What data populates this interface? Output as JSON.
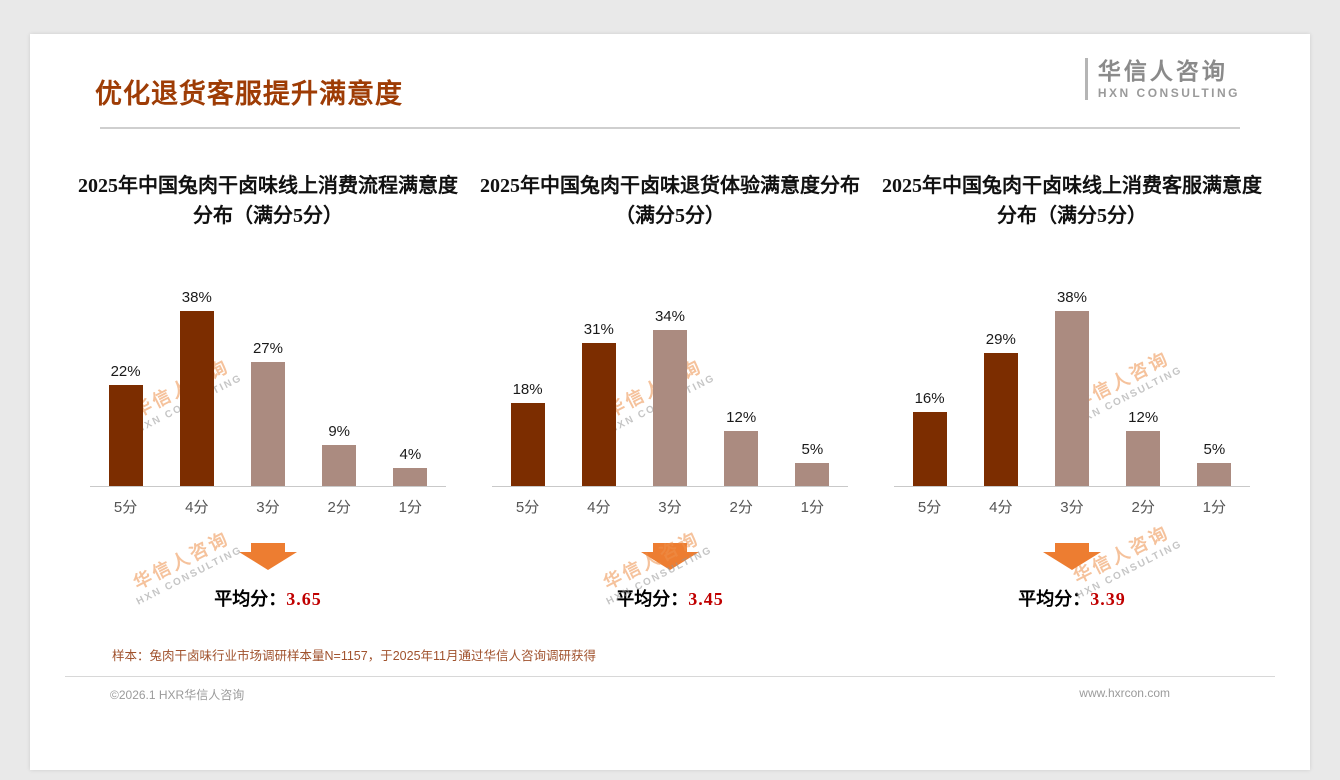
{
  "page": {
    "title": "优化退货客服提升满意度",
    "logo": {
      "name": "华信人咨询",
      "sub": "HXN CONSULTING"
    },
    "watermark": {
      "line1": "华信人咨询",
      "line2": "HXN CONSULTING"
    },
    "footnote": "样本：兔肉干卤味行业市场调研样本量N=1157，于2025年11月通过华信人咨询调研获得",
    "footer_left": "©2026.1 HXR华信人咨询",
    "footer_right": "www.hxrcon.com"
  },
  "colors": {
    "title": "#9e3c05",
    "bar_dark": "#7c2d00",
    "bar_light": "#ab8b80",
    "arrow": "#ed7d31",
    "average_value": "#c00000"
  },
  "chart_data": [
    {
      "type": "bar",
      "title": "2025年中国兔肉干卤味线上消费流程满意度分布（满分5分）",
      "categories": [
        "5分",
        "4分",
        "3分",
        "2分",
        "1分"
      ],
      "values": [
        22,
        38,
        27,
        9,
        4
      ],
      "unit": "%",
      "xlabel": "",
      "ylabel": "",
      "ylim": [
        0,
        40
      ],
      "grid": false,
      "average_label": "平均分：",
      "average": "3.65"
    },
    {
      "type": "bar",
      "title": "2025年中国兔肉干卤味退货体验满意度分布（满分5分）",
      "categories": [
        "5分",
        "4分",
        "3分",
        "2分",
        "1分"
      ],
      "values": [
        18,
        31,
        34,
        12,
        5
      ],
      "unit": "%",
      "xlabel": "",
      "ylabel": "",
      "ylim": [
        0,
        40
      ],
      "grid": false,
      "average_label": "平均分：",
      "average": "3.45"
    },
    {
      "type": "bar",
      "title": "2025年中国兔肉干卤味线上消费客服满意度分布（满分5分）",
      "categories": [
        "5分",
        "4分",
        "3分",
        "2分",
        "1分"
      ],
      "values": [
        16,
        29,
        38,
        12,
        5
      ],
      "unit": "%",
      "xlabel": "",
      "ylabel": "",
      "ylim": [
        0,
        40
      ],
      "grid": false,
      "average_label": "平均分：",
      "average": "3.39"
    }
  ]
}
